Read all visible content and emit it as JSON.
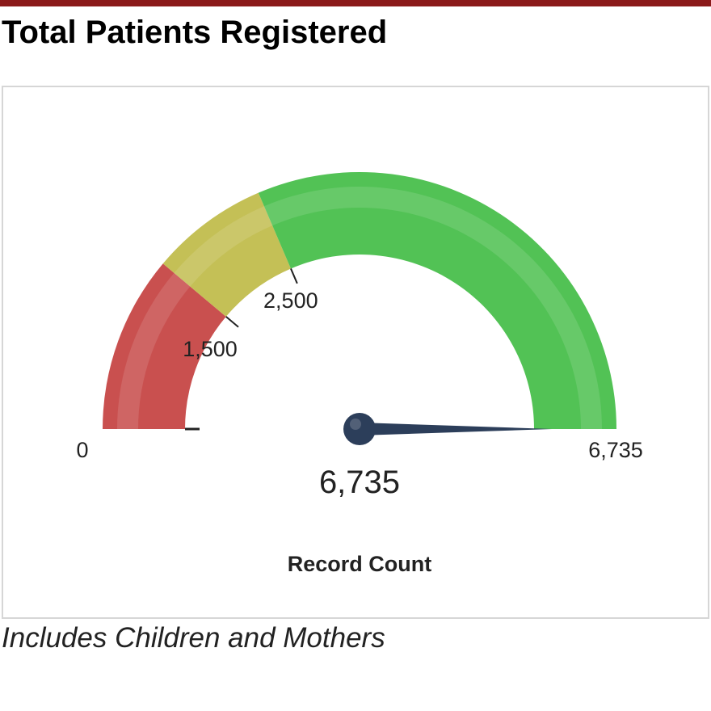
{
  "page": {
    "title": "Total Patients Registered",
    "footnote": "Includes Children and Mothers",
    "accent_color": "#8b1a1a"
  },
  "chart_data": {
    "type": "gauge",
    "min": 0,
    "max": 6735,
    "value": 6735,
    "value_label": "6,735",
    "min_label": "0",
    "max_label": "6,735",
    "measure_label": "Record Count",
    "bands": [
      {
        "from": 0,
        "to": 1500,
        "color": "#c9504f"
      },
      {
        "from": 1500,
        "to": 2500,
        "color": "#c4c056"
      },
      {
        "from": 2500,
        "to": 6735,
        "color": "#52c255"
      }
    ],
    "thresholds": [
      {
        "value": 1500,
        "label": "1,500"
      },
      {
        "value": 2500,
        "label": "2,500"
      }
    ],
    "needle_color": "#2c3e5a"
  }
}
